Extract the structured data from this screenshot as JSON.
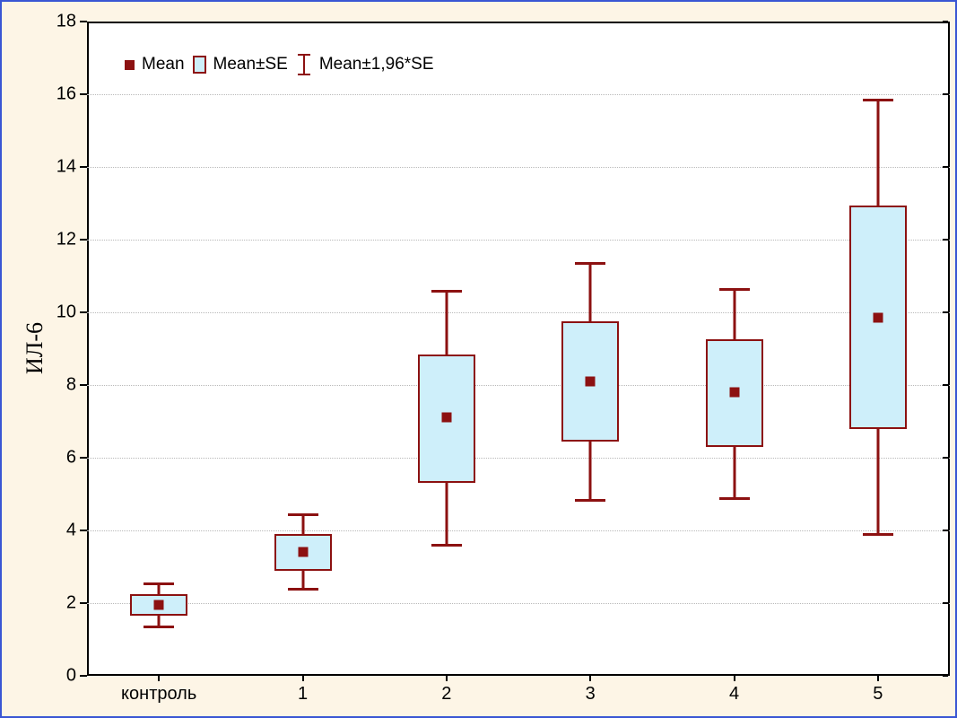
{
  "page": {
    "background_color": "#FDF5E6",
    "frame_border_color": "#3A56D4"
  },
  "chart_data": {
    "type": "box",
    "subtype": "mean-se-whisker",
    "title": "",
    "xlabel": "",
    "ylabel": "ИЛ-6",
    "ylim": [
      0,
      18
    ],
    "ytick_step": 2,
    "yticks": [
      0,
      2,
      4,
      6,
      8,
      10,
      12,
      14,
      16,
      18
    ],
    "grid": "horizontal dotted at major ticks",
    "legend_position": "top-left inside plot",
    "legend": [
      {
        "label": "Mean",
        "marker": "filled-square"
      },
      {
        "label": "Mean±SE",
        "marker": "box"
      },
      {
        "label": "Mean±1,96*SE",
        "marker": "whisker"
      }
    ],
    "categories": [
      "контроль",
      "1",
      "2",
      "3",
      "4",
      "5"
    ],
    "series": [
      {
        "label": "контроль",
        "mean": 1.95,
        "se_low": 1.65,
        "se_high": 2.25,
        "ci_low": 1.35,
        "ci_high": 2.55
      },
      {
        "label": "1",
        "mean": 3.4,
        "se_low": 2.9,
        "se_high": 3.9,
        "ci_low": 2.4,
        "ci_high": 4.45
      },
      {
        "label": "2",
        "mean": 7.1,
        "se_low": 5.3,
        "se_high": 8.85,
        "ci_low": 3.6,
        "ci_high": 10.6
      },
      {
        "label": "3",
        "mean": 8.1,
        "se_low": 6.45,
        "se_high": 9.75,
        "ci_low": 4.85,
        "ci_high": 11.35
      },
      {
        "label": "4",
        "mean": 7.8,
        "se_low": 6.3,
        "se_high": 9.25,
        "ci_low": 4.9,
        "ci_high": 10.65
      },
      {
        "label": "5",
        "mean": 9.85,
        "se_low": 6.8,
        "se_high": 12.95,
        "ci_low": 3.9,
        "ci_high": 15.85
      }
    ],
    "colors": {
      "plot_background": "#FFFFFF",
      "plot_border": "#000000",
      "box_fill": "#CEEFFA",
      "line": "#8C1111",
      "mean_marker": "#8C1111",
      "gridline": "#B9B9B9",
      "text": "#000000"
    }
  }
}
